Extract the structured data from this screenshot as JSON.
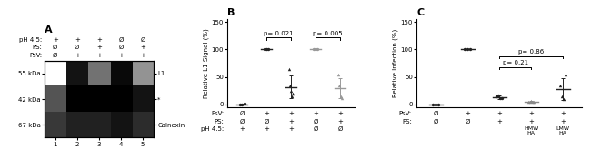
{
  "chart_data": [
    {
      "type": "heatmap",
      "title": "A",
      "categories": [
        "1",
        "2",
        "3",
        "4",
        "5"
      ],
      "condition_rows": [
        {
          "label": "pH 4.5:",
          "values": [
            "+",
            "+",
            "+",
            "Ø",
            "Ø"
          ]
        },
        {
          "label": "PS:",
          "values": [
            "Ø",
            "Ø",
            "+",
            "Ø",
            "+"
          ]
        },
        {
          "label": "PsV:",
          "values": [
            "Ø",
            "+",
            "+",
            "+",
            "+"
          ]
        }
      ],
      "rows": [
        "55 kDa",
        "42 kDa",
        "67 kDa"
      ],
      "row_names": [
        "L1",
        "*",
        "Calnexin"
      ],
      "cells": [
        [
          0.0,
          0.82,
          0.55,
          0.85,
          0.45
        ],
        [
          0.65,
          0.88,
          0.88,
          0.88,
          0.82
        ],
        [
          0.72,
          0.78,
          0.78,
          0.82,
          0.75
        ]
      ]
    },
    {
      "type": "scatter",
      "title": "B",
      "ylabel": "Relative L1 Signal (%)",
      "ylim": [
        -5,
        155
      ],
      "yticks": [
        0,
        50,
        100,
        150
      ],
      "tick_labels": "y",
      "groups": [
        {
          "points": [
            0.5,
            0.6,
            0.8
          ],
          "mean": 0.6,
          "sd": 0.15,
          "marker": "circle",
          "color": "#222222"
        },
        {
          "points": [
            100,
            100,
            100
          ],
          "mean": 100,
          "sd": 0,
          "marker": "circle",
          "color": "#222222"
        },
        {
          "points": [
            65,
            35,
            25,
            15,
            20
          ],
          "mean": 32,
          "sd": 20,
          "marker": "triangle",
          "color": "#222222"
        },
        {
          "points": [
            100,
            100,
            100
          ],
          "mean": 100,
          "sd": 0,
          "marker": "circle",
          "color": "#999999"
        },
        {
          "points": [
            55,
            35,
            15,
            12
          ],
          "mean": 29,
          "sd": 18,
          "marker": "triangle",
          "color": "#999999"
        }
      ],
      "brackets": [
        {
          "x1": 2,
          "x2": 3,
          "y": 122,
          "drop": 4,
          "label": "p= 0.021"
        },
        {
          "x1": 4,
          "x2": 5,
          "y": 122,
          "drop": 4,
          "label": "p= 0.005"
        }
      ],
      "condition_rows": [
        {
          "label": "PsV:",
          "values": [
            "Ø",
            "+",
            "+",
            "+",
            "+"
          ]
        },
        {
          "label": "PS:",
          "values": [
            "Ø",
            "Ø",
            "+",
            "Ø",
            "+"
          ]
        },
        {
          "label": "pH 4.5:",
          "values": [
            "+",
            "+",
            "+",
            "Ø",
            "Ø"
          ]
        }
      ]
    },
    {
      "type": "scatter",
      "title": "C",
      "ylabel": "Relative Infection (%)",
      "ylim": [
        -5,
        155
      ],
      "yticks": [
        0,
        50,
        100,
        150
      ],
      "tick_labels": "y",
      "groups": [
        {
          "points": [
            0.5,
            0.4,
            0.6
          ],
          "mean": 0.5,
          "sd": 0.1,
          "marker": "circle",
          "color": "#222222"
        },
        {
          "points": [
            100,
            100,
            100
          ],
          "mean": 100,
          "sd": 0,
          "marker": "circle",
          "color": "#222222"
        },
        {
          "points": [
            14,
            16,
            12,
            11
          ],
          "mean": 13,
          "sd": 4,
          "marker": "circle",
          "color": "#222222"
        },
        {
          "points": [
            5,
            4,
            6,
            5,
            4
          ],
          "mean": 5,
          "sd": 1.5,
          "marker": "triangle",
          "color": "#888888"
        },
        {
          "points": [
            35,
            14,
            10,
            55
          ],
          "mean": 28,
          "sd": 20,
          "marker": "triangle",
          "color": "#222222"
        }
      ],
      "brackets": [
        {
          "x1": 3,
          "x2": 4,
          "y": 68,
          "drop": 4,
          "label": "p= 0.21"
        },
        {
          "x1": 3,
          "x2": 5,
          "y": 88,
          "drop": 4,
          "label": "p= 0.86"
        }
      ],
      "condition_rows": [
        {
          "label": "PsV:",
          "values": [
            "Ø",
            "+",
            "+",
            "+",
            "+"
          ]
        },
        {
          "label": "PS:",
          "values": [
            "Ø",
            "Ø",
            "+",
            "+",
            "+"
          ]
        }
      ],
      "extra_labels": [
        {
          "col": 4,
          "lines": [
            "HMW",
            "HA"
          ]
        },
        {
          "col": 5,
          "lines": [
            "LMW",
            "HA"
          ]
        }
      ]
    }
  ]
}
